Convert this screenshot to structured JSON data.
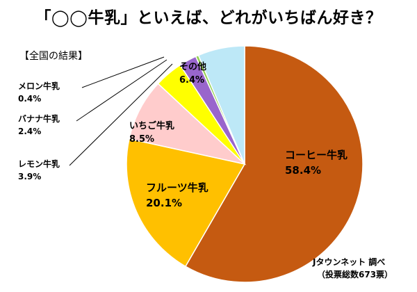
{
  "title": "「◯◯牛乳」といえば、どれがいちばん好き？",
  "subtitle": "【全国の結果】",
  "credit": {
    "brand": "Jタウンネット",
    "action": "調べ",
    "note": "（投票総数673票）"
  },
  "chart_data": {
    "type": "pie",
    "start_angle_deg": 0,
    "direction": "clockwise",
    "slices": [
      {
        "label": "コーヒー牛乳",
        "value": 58.4,
        "value_text": "58.4%",
        "color": "#c55a11",
        "label_pos": "inside"
      },
      {
        "label": "フルーツ牛乳",
        "value": 20.1,
        "value_text": "20.1%",
        "color": "#ffc000",
        "label_pos": "inside"
      },
      {
        "label": "いちご牛乳",
        "value": 8.5,
        "value_text": "8.5%",
        "color": "#ffcccc",
        "label_pos": "inside"
      },
      {
        "label": "レモン牛乳",
        "value": 3.9,
        "value_text": "3.9%",
        "color": "#ffff00",
        "label_pos": "outside"
      },
      {
        "label": "バナナ牛乳",
        "value": 2.4,
        "value_text": "2.4%",
        "color": "#9966cc",
        "label_pos": "outside"
      },
      {
        "label": "メロン牛乳",
        "value": 0.4,
        "value_text": "0.4%",
        "color": "#92d050",
        "label_pos": "outside"
      },
      {
        "label": "その他",
        "value": 6.4,
        "value_text": "6.4%",
        "color": "#bde8f7",
        "label_pos": "inside"
      }
    ]
  }
}
